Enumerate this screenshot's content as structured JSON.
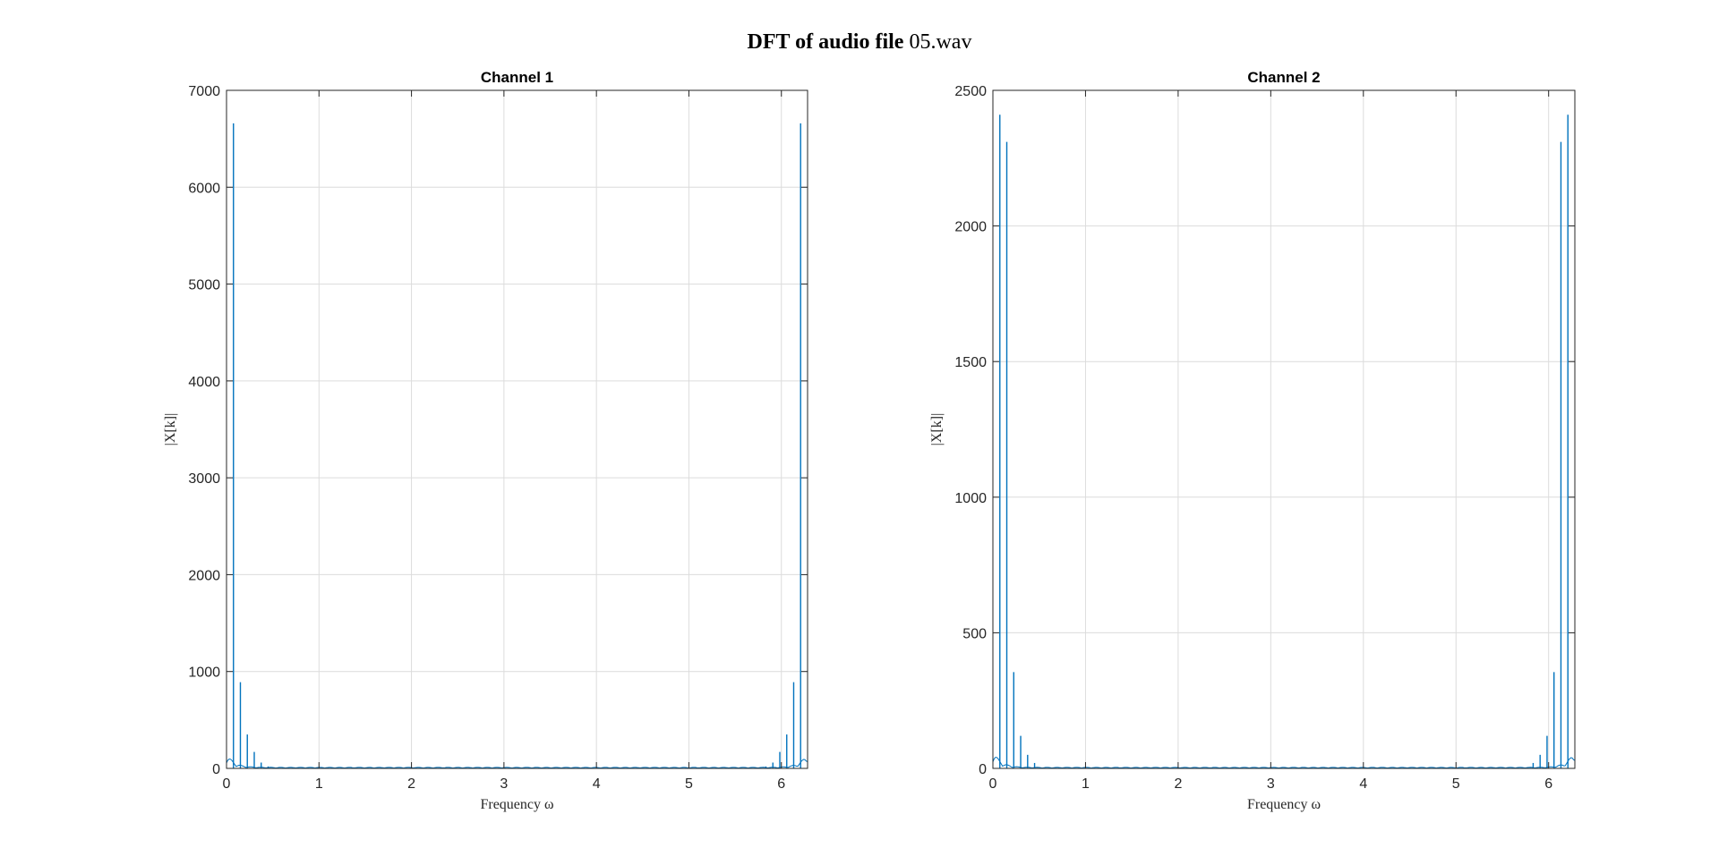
{
  "figure_title": {
    "prefix": "DFT of audio file ",
    "filename": "05.wav"
  },
  "line_color": "#0072BD",
  "chart_data": [
    {
      "type": "line",
      "title": "Channel 1",
      "xlabel": "Frequency ω",
      "ylabel": "|X[k]|",
      "xlim": [
        0,
        6.2832
      ],
      "ylim": [
        0,
        7000
      ],
      "xticks": [
        0,
        1,
        2,
        3,
        4,
        5,
        6
      ],
      "yticks": [
        0,
        1000,
        2000,
        3000,
        4000,
        5000,
        6000,
        7000
      ],
      "grid": true,
      "legend": "none",
      "peaks": [
        {
          "x": 0.075,
          "y": 6660
        },
        {
          "x": 0.15,
          "y": 890
        },
        {
          "x": 0.225,
          "y": 350
        },
        {
          "x": 0.3,
          "y": 170
        },
        {
          "x": 0.375,
          "y": 60
        },
        {
          "x": 0.45,
          "y": 20
        },
        {
          "x": 5.833,
          "y": 20
        },
        {
          "x": 5.908,
          "y": 60
        },
        {
          "x": 5.983,
          "y": 170
        },
        {
          "x": 6.058,
          "y": 350
        },
        {
          "x": 6.133,
          "y": 890
        },
        {
          "x": 6.208,
          "y": 6660
        }
      ],
      "edge_noise": 150
    },
    {
      "type": "line",
      "title": "Channel 2",
      "xlabel": "Frequency ω",
      "ylabel": "|X[k]|",
      "xlim": [
        0,
        6.2832
      ],
      "ylim": [
        0,
        2500
      ],
      "xticks": [
        0,
        1,
        2,
        3,
        4,
        5,
        6
      ],
      "yticks": [
        0,
        500,
        1000,
        1500,
        2000,
        2500
      ],
      "grid": true,
      "legend": "none",
      "peaks": [
        {
          "x": 0.075,
          "y": 2410
        },
        {
          "x": 0.15,
          "y": 2310
        },
        {
          "x": 0.225,
          "y": 355
        },
        {
          "x": 0.3,
          "y": 120
        },
        {
          "x": 0.375,
          "y": 50
        },
        {
          "x": 0.45,
          "y": 20
        },
        {
          "x": 5.833,
          "y": 20
        },
        {
          "x": 5.908,
          "y": 50
        },
        {
          "x": 5.983,
          "y": 120
        },
        {
          "x": 6.058,
          "y": 355
        },
        {
          "x": 6.133,
          "y": 2310
        },
        {
          "x": 6.208,
          "y": 2410
        }
      ],
      "edge_noise": 65
    }
  ]
}
